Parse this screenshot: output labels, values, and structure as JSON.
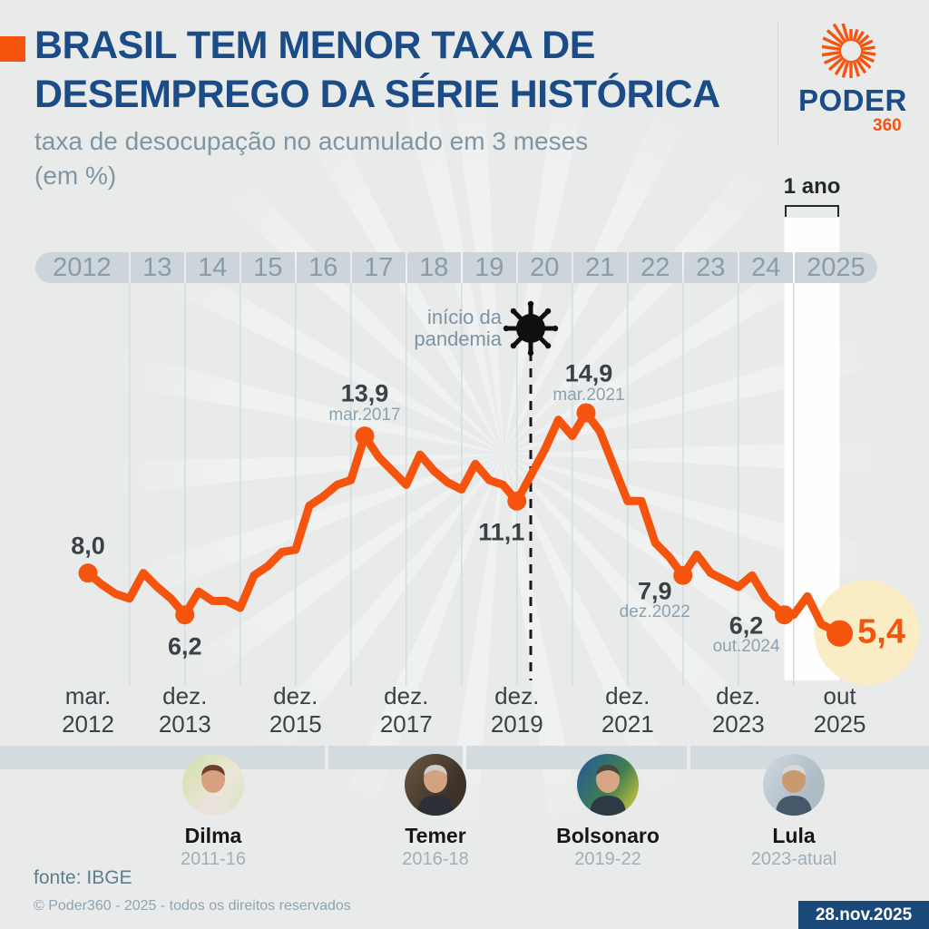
{
  "header": {
    "title_line1": "BRASIL TEM MENOR TAXA DE",
    "title_line2": "DESEMPREGO DA SÉRIE HISTÓRICA",
    "subtitle_line1": "taxa de desocupação no acumulado em 3 meses",
    "subtitle_line2": "(em %)"
  },
  "logo": {
    "brand": "PODER",
    "suffix": "360"
  },
  "colors": {
    "accent_orange": "#f4540e",
    "title_navy": "#1b4c86",
    "highlight_yellow": "#faecc5",
    "badge_navy": "#1a4879"
  },
  "chart_data": {
    "type": "line",
    "title": "taxa de desocupação no acumulado em 3 meses (em %)",
    "unit": "%",
    "series_name": "taxa de desocupação",
    "x_is_decimal_year": true,
    "xlim": [
      2012.25,
      2025.833
    ],
    "grid": "vertical-years",
    "points": [
      [
        2012.25,
        8.0
      ],
      [
        2012.5,
        7.5
      ],
      [
        2012.75,
        7.1
      ],
      [
        2013.0,
        6.9
      ],
      [
        2013.25,
        8.0
      ],
      [
        2013.5,
        7.4
      ],
      [
        2013.75,
        6.9
      ],
      [
        2014.0,
        6.2
      ],
      [
        2014.25,
        7.2
      ],
      [
        2014.5,
        6.8
      ],
      [
        2014.75,
        6.8
      ],
      [
        2015.0,
        6.5
      ],
      [
        2015.25,
        7.9
      ],
      [
        2015.5,
        8.3
      ],
      [
        2015.75,
        8.9
      ],
      [
        2016.0,
        9.0
      ],
      [
        2016.25,
        10.9
      ],
      [
        2016.5,
        11.3
      ],
      [
        2016.75,
        11.8
      ],
      [
        2017.0,
        12.0
      ],
      [
        2017.25,
        13.9
      ],
      [
        2017.5,
        13.0
      ],
      [
        2017.75,
        12.4
      ],
      [
        2018.0,
        11.8
      ],
      [
        2018.25,
        13.1
      ],
      [
        2018.5,
        12.4
      ],
      [
        2018.75,
        11.9
      ],
      [
        2019.0,
        11.6
      ],
      [
        2019.25,
        12.7
      ],
      [
        2019.5,
        12.0
      ],
      [
        2019.75,
        11.8
      ],
      [
        2020.0,
        11.1
      ],
      [
        2020.25,
        12.2
      ],
      [
        2020.5,
        13.3
      ],
      [
        2020.75,
        14.6
      ],
      [
        2021.0,
        13.9
      ],
      [
        2021.25,
        14.9
      ],
      [
        2021.5,
        14.1
      ],
      [
        2021.75,
        12.6
      ],
      [
        2022.0,
        11.1
      ],
      [
        2022.25,
        11.1
      ],
      [
        2022.5,
        9.3
      ],
      [
        2022.75,
        8.7
      ],
      [
        2023.0,
        7.9
      ],
      [
        2023.25,
        8.8
      ],
      [
        2023.5,
        8.0
      ],
      [
        2023.75,
        7.7
      ],
      [
        2024.0,
        7.4
      ],
      [
        2024.25,
        7.9
      ],
      [
        2024.5,
        6.9
      ],
      [
        2024.833,
        6.2
      ],
      [
        2025.0,
        6.2
      ],
      [
        2025.25,
        7.0
      ],
      [
        2025.5,
        5.8
      ],
      [
        2025.833,
        5.4
      ]
    ],
    "top_axis_years": [
      "2012",
      "13",
      "14",
      "15",
      "16",
      "17",
      "18",
      "19",
      "20",
      "21",
      "22",
      "23",
      "24",
      "2025"
    ],
    "bottom_axis_labels": [
      {
        "line1": "mar.",
        "line2": "2012",
        "d": 2012.25
      },
      {
        "line1": "dez.",
        "line2": "2013",
        "d": 2014.0
      },
      {
        "line1": "dez.",
        "line2": "2015",
        "d": 2016.0
      },
      {
        "line1": "dez.",
        "line2": "2017",
        "d": 2018.0
      },
      {
        "line1": "dez.",
        "line2": "2019",
        "d": 2020.0
      },
      {
        "line1": "dez.",
        "line2": "2021",
        "d": 2022.0
      },
      {
        "line1": "dez.",
        "line2": "2023",
        "d": 2024.0
      },
      {
        "line1": "out",
        "line2": "2025",
        "d": 2025.833
      }
    ],
    "annotations": [
      {
        "value": "8,0",
        "date_label": "",
        "d": 2012.25,
        "v": 8.0
      },
      {
        "value": "6,2",
        "date_label": "",
        "d": 2014.0,
        "v": 6.2
      },
      {
        "value": "13,9",
        "date_label": "mar.2017",
        "d": 2017.25,
        "v": 13.9
      },
      {
        "value": "11,1",
        "date_label": "",
        "d": 2020.0,
        "v": 11.1
      },
      {
        "value": "14,9",
        "date_label": "mar.2021",
        "d": 2021.25,
        "v": 14.9
      },
      {
        "value": "7,9",
        "date_label": "dez.2022",
        "d": 2023.0,
        "v": 7.9
      },
      {
        "value": "6,2",
        "date_label": "out.2024",
        "d": 2024.833,
        "v": 6.2
      },
      {
        "value": "5,4",
        "date_label": "",
        "d": 2025.833,
        "v": 5.4,
        "highlight": true
      }
    ],
    "pandemic": {
      "label_line1": "início da",
      "label_line2": "pandemia",
      "d": 2020.25
    },
    "one_year_marker": {
      "label": "1 ano",
      "start": 2024.833,
      "end": 2025.833
    }
  },
  "presidents": [
    {
      "name": "Dilma",
      "term": "2011-16"
    },
    {
      "name": "Temer",
      "term": "2016-18"
    },
    {
      "name": "Bolsonaro",
      "term": "2019-22"
    },
    {
      "name": "Lula",
      "term": "2023-atual"
    }
  ],
  "footer": {
    "source": "fonte: IBGE",
    "copyright": "© Poder360 - 2025 - todos os direitos reservados",
    "date_badge": "28.nov.2025"
  }
}
